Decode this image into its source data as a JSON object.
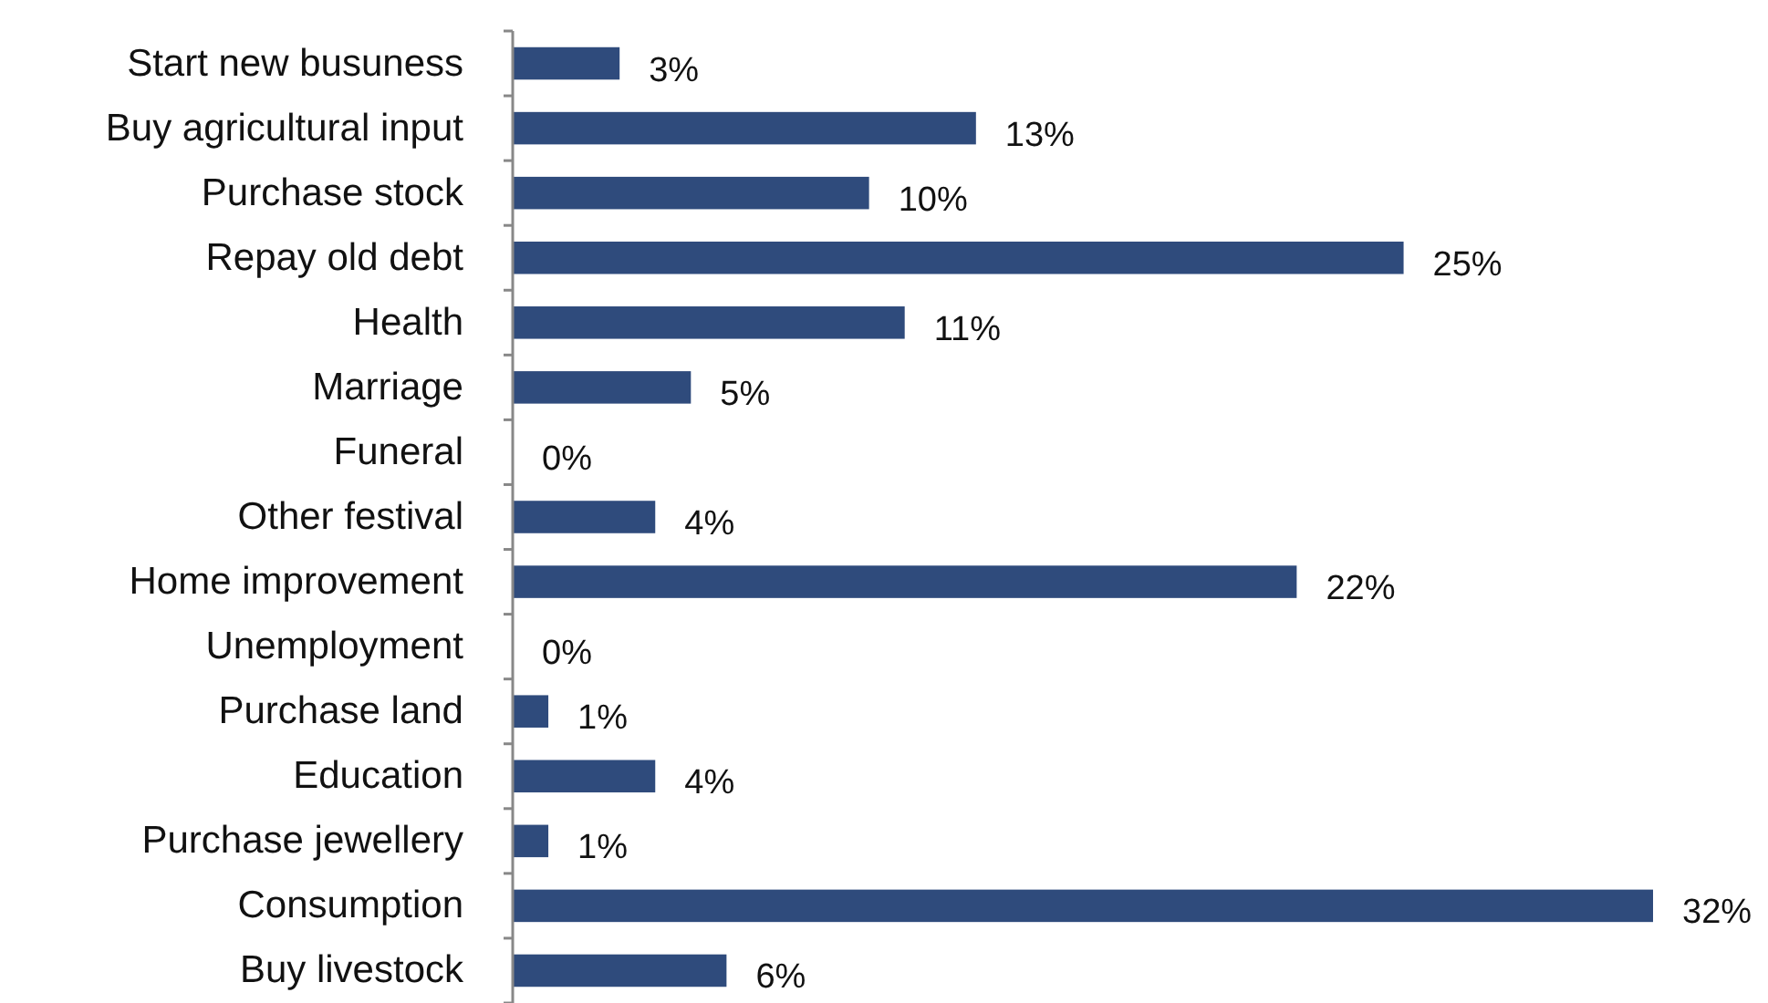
{
  "chart_data": {
    "type": "bar",
    "orientation": "horizontal",
    "categories": [
      "Start new busuness",
      "Buy agricultural input",
      "Purchase stock",
      "Repay old debt",
      "Health",
      "Marriage",
      "Funeral",
      "Other festival",
      "Home improvement",
      "Unemployment",
      "Purchase land",
      "Education",
      "Purchase jewellery",
      "Consumption",
      "Buy livestock"
    ],
    "values": [
      3,
      13,
      10,
      25,
      11,
      5,
      0,
      4,
      22,
      0,
      1,
      4,
      1,
      32,
      6
    ],
    "value_labels": [
      "3%",
      "13%",
      "10%",
      "25%",
      "11%",
      "5%",
      "0%",
      "4%",
      "22%",
      "0%",
      "1%",
      "4%",
      "1%",
      "32%",
      "6%"
    ],
    "color": "#2f4b7c",
    "tick_labels": "y"
  }
}
